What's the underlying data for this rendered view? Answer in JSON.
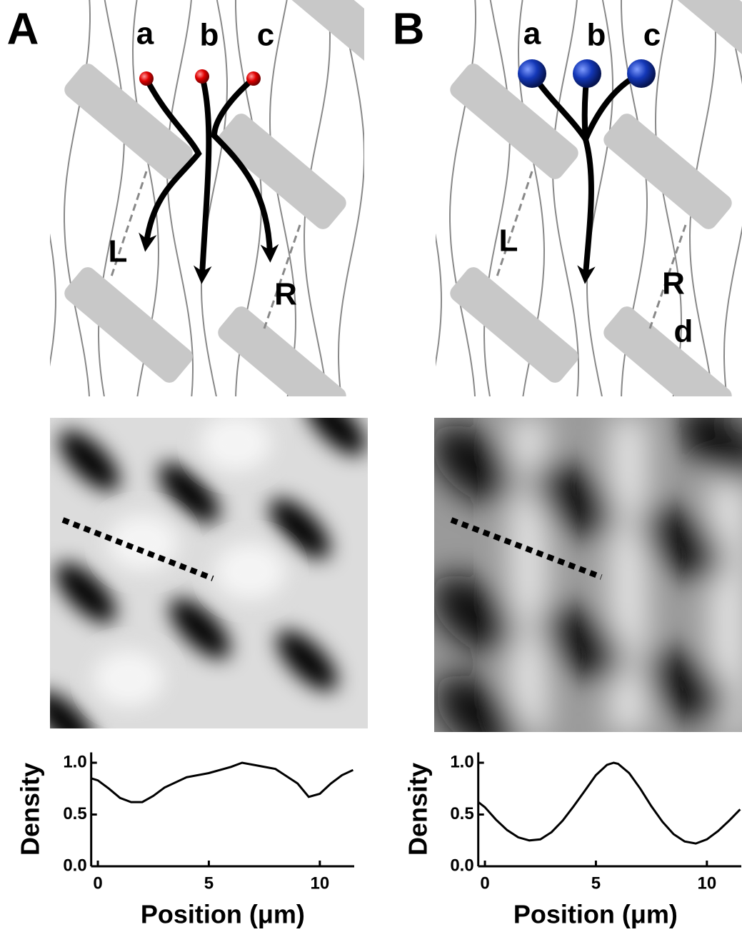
{
  "panels": [
    {
      "letter": "A",
      "particles": [
        "a",
        "b",
        "c"
      ],
      "regions": [
        "L",
        "R"
      ]
    },
    {
      "letter": "B",
      "particles": [
        "a",
        "b",
        "c"
      ],
      "regions": [
        "L",
        "R"
      ],
      "extra_label": "d"
    }
  ],
  "chart_data": [
    {
      "type": "line",
      "x_label": "Position (μm)",
      "y_label": "Density",
      "x": [
        -0.3,
        0,
        0.5,
        1,
        1.5,
        2,
        2.5,
        3,
        4,
        5,
        6,
        6.5,
        7,
        8,
        9,
        9.5,
        10,
        10.5,
        11,
        11.5
      ],
      "series": [
        {
          "color": "#000000",
          "values": [
            0.85,
            0.83,
            0.75,
            0.66,
            0.62,
            0.62,
            0.68,
            0.76,
            0.86,
            0.9,
            0.96,
            1.0,
            0.98,
            0.94,
            0.8,
            0.67,
            0.7,
            0.8,
            0.88,
            0.93
          ]
        }
      ],
      "xlim": [
        -0.3,
        11.55
      ],
      "ylim": [
        0,
        1.1
      ],
      "xticks": [
        0,
        5,
        10
      ],
      "yticks": [
        {
          "value": 0,
          "label": "0.0"
        },
        {
          "value": 0.5,
          "label": "0.5"
        },
        {
          "value": 1,
          "label": "1.0"
        }
      ]
    },
    {
      "type": "line",
      "x_label": "Position (μm)",
      "y_label": "Density",
      "x": [
        -0.3,
        0,
        0.5,
        1,
        1.5,
        2,
        2.5,
        3,
        3.5,
        4,
        4.5,
        5,
        5.5,
        5.8,
        6,
        6.5,
        7,
        7.5,
        8,
        8.5,
        9,
        9.5,
        10,
        10.5,
        11,
        11.5
      ],
      "series": [
        {
          "color": "#000000",
          "values": [
            0.62,
            0.57,
            0.45,
            0.35,
            0.28,
            0.25,
            0.26,
            0.33,
            0.44,
            0.58,
            0.73,
            0.88,
            0.98,
            1.0,
            0.99,
            0.9,
            0.75,
            0.58,
            0.43,
            0.31,
            0.24,
            0.22,
            0.26,
            0.34,
            0.44,
            0.55
          ]
        }
      ],
      "xlim": [
        -0.3,
        11.55
      ],
      "ylim": [
        0,
        1.1
      ],
      "xticks": [
        0,
        5,
        10
      ],
      "yticks": [
        {
          "value": 0,
          "label": "0.0"
        },
        {
          "value": 0.5,
          "label": "0.5"
        },
        {
          "value": 1,
          "label": "1.0"
        }
      ]
    }
  ]
}
